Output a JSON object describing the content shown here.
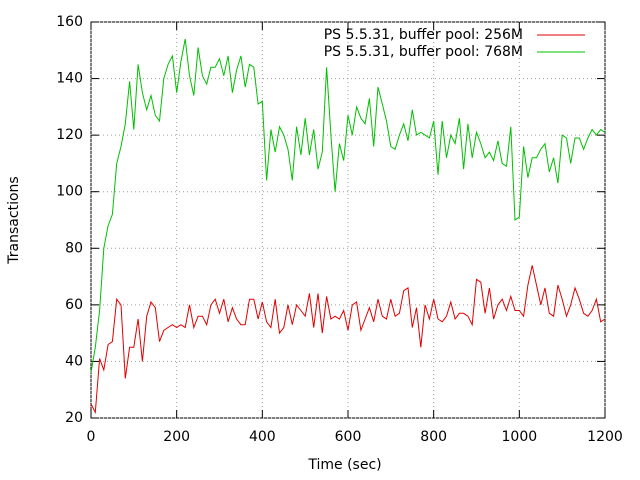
{
  "chart_data": {
    "type": "line",
    "xlabel": "Time (sec)",
    "ylabel": "Transactions",
    "x": [
      0,
      10,
      20,
      30,
      40,
      50,
      60,
      70,
      80,
      90,
      100,
      110,
      120,
      130,
      140,
      150,
      160,
      170,
      180,
      190,
      200,
      210,
      220,
      230,
      240,
      250,
      260,
      270,
      280,
      290,
      300,
      310,
      320,
      330,
      340,
      350,
      360,
      370,
      380,
      390,
      400,
      410,
      420,
      430,
      440,
      450,
      460,
      470,
      480,
      490,
      500,
      510,
      520,
      530,
      540,
      550,
      560,
      570,
      580,
      590,
      600,
      610,
      620,
      630,
      640,
      650,
      660,
      670,
      680,
      690,
      700,
      710,
      720,
      730,
      740,
      750,
      760,
      770,
      780,
      790,
      800,
      810,
      820,
      830,
      840,
      850,
      860,
      870,
      880,
      890,
      900,
      910,
      920,
      930,
      940,
      950,
      960,
      970,
      980,
      990,
      1000,
      1010,
      1020,
      1030,
      1040,
      1050,
      1060,
      1070,
      1080,
      1090,
      1100,
      1110,
      1120,
      1130,
      1140,
      1150,
      1160,
      1170,
      1180,
      1190,
      1200
    ],
    "series": [
      {
        "name": "PS 5.5.31, buffer pool: 256M",
        "color": "#e00000",
        "values": [
          25,
          22,
          41,
          37,
          46,
          47,
          62,
          60,
          34,
          45,
          45,
          55,
          40,
          56,
          61,
          59,
          47,
          51,
          52,
          53,
          52,
          53,
          52,
          60,
          52,
          56,
          56,
          53,
          60,
          62,
          57,
          62,
          54,
          59,
          55,
          53,
          53,
          62,
          62,
          55,
          61,
          54,
          52,
          62,
          50,
          52,
          60,
          53,
          60,
          58,
          56,
          64,
          52,
          64,
          50,
          63,
          55,
          56,
          55,
          58,
          51,
          60,
          61,
          51,
          55,
          59,
          54,
          62,
          56,
          55,
          62,
          56,
          57,
          65,
          66,
          52,
          59,
          45,
          60,
          55,
          62,
          55,
          54,
          56,
          61,
          55,
          57,
          57,
          56,
          53,
          69,
          68,
          57,
          66,
          55,
          60,
          62,
          58,
          63,
          58,
          58,
          56,
          67,
          74,
          67,
          60,
          66,
          57,
          56,
          67,
          62,
          56,
          60,
          66,
          62,
          57,
          56,
          58,
          62,
          54,
          55
        ]
      },
      {
        "name": "PS 5.5.31, buffer pool: 768M",
        "color": "#00c000",
        "values": [
          36,
          45,
          58,
          80,
          88,
          92,
          110,
          116,
          124,
          139,
          122,
          145,
          135,
          129,
          134,
          127,
          125,
          140,
          145,
          148,
          135,
          146,
          154,
          141,
          134,
          151,
          141,
          138,
          144,
          144,
          147,
          141,
          148,
          135,
          143,
          148,
          137,
          145,
          144,
          131,
          132,
          104,
          122,
          114,
          123,
          120,
          115,
          104,
          123,
          113,
          126,
          113,
          122,
          108,
          114,
          144,
          120,
          100,
          117,
          111,
          127,
          120,
          130,
          126,
          124,
          133,
          116,
          137,
          131,
          125,
          116,
          115,
          120,
          124,
          118,
          129,
          120,
          121,
          120,
          119,
          125,
          106,
          125,
          112,
          120,
          117,
          126,
          108,
          124,
          112,
          121,
          117,
          112,
          114,
          111,
          118,
          110,
          109,
          123,
          90,
          91,
          116,
          105,
          112,
          112,
          115,
          117,
          107,
          112,
          103,
          120,
          119,
          110,
          119,
          119,
          115,
          119,
          122,
          120,
          122,
          121
        ]
      }
    ],
    "xlim": [
      0,
      1200
    ],
    "xticks": [
      0,
      200,
      400,
      600,
      800,
      1000,
      1200
    ],
    "ylim": [
      20,
      160
    ],
    "yticks": [
      20,
      40,
      60,
      80,
      100,
      120,
      140,
      160
    ],
    "grid": true,
    "legend": "top-right"
  }
}
